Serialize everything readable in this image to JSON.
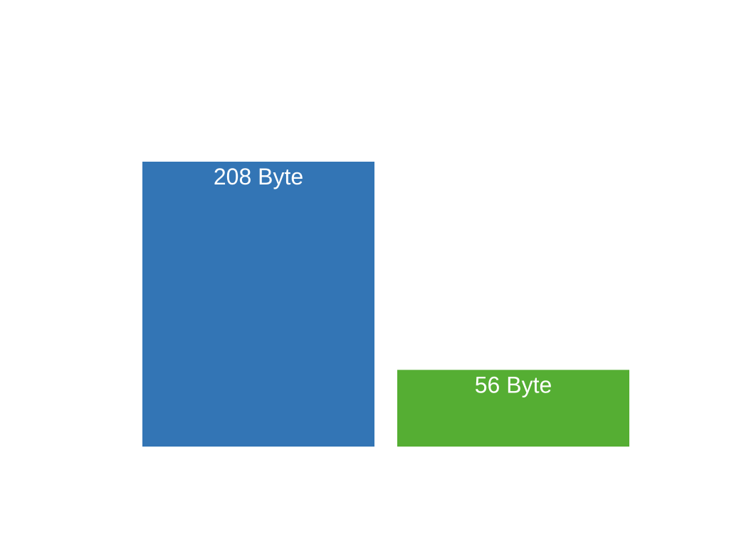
{
  "chart_data": {
    "type": "bar",
    "categories": [
      "",
      ""
    ],
    "values": [
      208,
      56
    ],
    "data_labels": [
      "208 Byte",
      "56 Byte"
    ],
    "colors": [
      "#3375b5",
      "#55ae33"
    ],
    "unit": "Byte",
    "ylim": [
      0,
      208
    ],
    "grid": false,
    "legend": "none",
    "axes_visible": false
  }
}
